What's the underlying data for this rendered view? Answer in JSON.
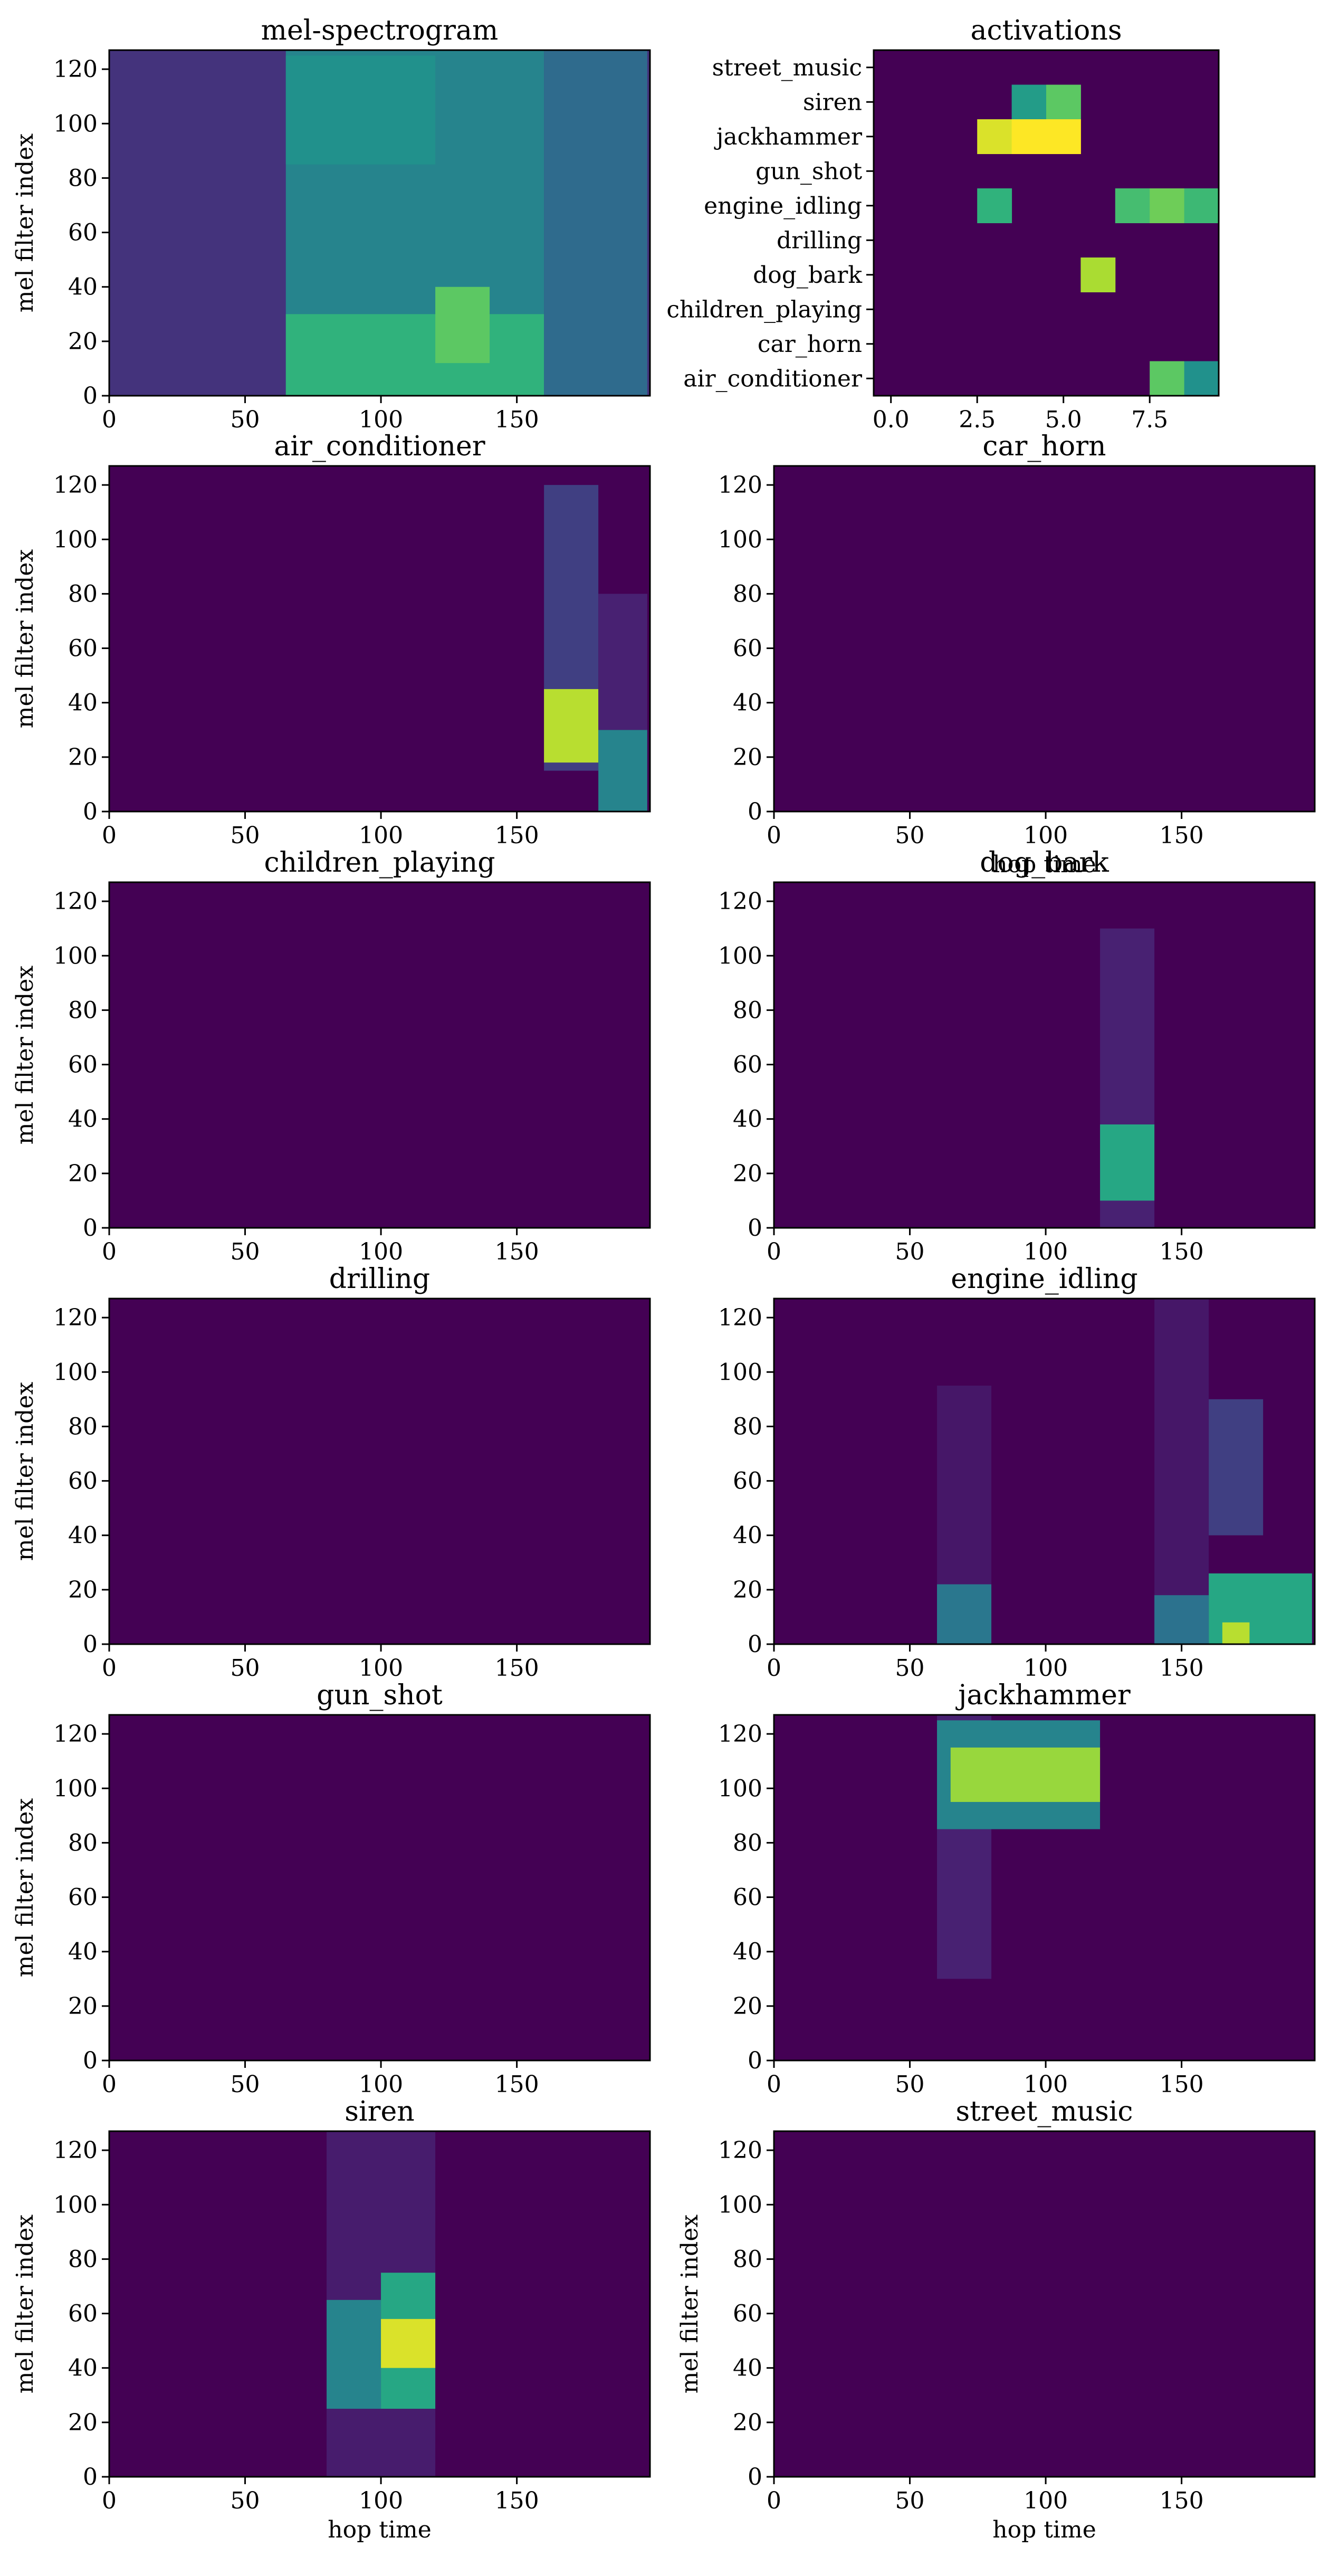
{
  "colors": {
    "background": "#440154",
    "colormap": "viridis"
  },
  "chart_data": [
    {
      "type": "heatmap",
      "title": "mel-spectrogram",
      "ylabel": "mel filter index",
      "xlabel": "",
      "xlim": [
        0,
        199
      ],
      "ylim": [
        0,
        127
      ],
      "x_ticks": [
        0,
        50,
        100,
        150
      ],
      "y_ticks": [
        0,
        20,
        40,
        60,
        80,
        100,
        120
      ],
      "base_level": 0.17,
      "events": [
        {
          "x": [
            65,
            160
          ],
          "y": [
            0,
            127
          ],
          "level": 0.45
        },
        {
          "x": [
            65,
            160
          ],
          "y": [
            0,
            30
          ],
          "level": 0.65
        },
        {
          "x": [
            160,
            198
          ],
          "y": [
            0,
            127
          ],
          "level": 0.35
        },
        {
          "x": [
            120,
            140
          ],
          "y": [
            12,
            40
          ],
          "level": 0.75
        },
        {
          "x": [
            65,
            120
          ],
          "y": [
            85,
            125
          ],
          "level": 0.5
        }
      ]
    },
    {
      "type": "heatmap",
      "title": "activations",
      "categories": [
        "street_music",
        "siren",
        "jackhammer",
        "gun_shot",
        "engine_idling",
        "drilling",
        "dog_bark",
        "children_playing",
        "car_horn",
        "air_conditioner"
      ],
      "x": [
        0,
        1,
        2,
        3,
        4,
        5,
        6,
        7,
        8,
        9
      ],
      "x_ticks": [
        "0.0",
        "2.5",
        "5.0",
        "7.5"
      ],
      "cells": [
        {
          "category": "siren",
          "x": 4,
          "level": 0.55
        },
        {
          "category": "siren",
          "x": 5,
          "level": 0.75
        },
        {
          "category": "jackhammer",
          "x": 3,
          "level": 0.95
        },
        {
          "category": "jackhammer",
          "x": 4,
          "level": 1.0
        },
        {
          "category": "jackhammer",
          "x": 5,
          "level": 1.0
        },
        {
          "category": "engine_idling",
          "x": 3,
          "level": 0.65
        },
        {
          "category": "engine_idling",
          "x": 7,
          "level": 0.7
        },
        {
          "category": "engine_idling",
          "x": 8,
          "level": 0.78
        },
        {
          "category": "engine_idling",
          "x": 9,
          "level": 0.68
        },
        {
          "category": "dog_bark",
          "x": 6,
          "level": 0.88
        },
        {
          "category": "air_conditioner",
          "x": 8,
          "level": 0.75
        },
        {
          "category": "air_conditioner",
          "x": 9,
          "level": 0.5
        }
      ]
    },
    {
      "type": "heatmap",
      "title": "air_conditioner",
      "ylabel": "mel filter index",
      "xlabel": "",
      "xlim": [
        0,
        199
      ],
      "ylim": [
        0,
        127
      ],
      "x_ticks": [
        0,
        50,
        100,
        150
      ],
      "y_ticks": [
        0,
        20,
        40,
        60,
        80,
        100,
        120
      ],
      "base_level": 0,
      "events": [
        {
          "x": [
            160,
            180
          ],
          "y": [
            15,
            120
          ],
          "level": 0.2
        },
        {
          "x": [
            160,
            180
          ],
          "y": [
            18,
            45
          ],
          "level": 0.9
        },
        {
          "x": [
            180,
            198
          ],
          "y": [
            0,
            30
          ],
          "level": 0.45
        },
        {
          "x": [
            180,
            198
          ],
          "y": [
            30,
            80
          ],
          "level": 0.12
        }
      ]
    },
    {
      "type": "heatmap",
      "title": "car_horn",
      "ylabel": "",
      "xlabel": "hop time",
      "xlim": [
        0,
        199
      ],
      "ylim": [
        0,
        127
      ],
      "x_ticks": [
        0,
        50,
        100,
        150
      ],
      "y_ticks": [
        0,
        20,
        40,
        60,
        80,
        100,
        120
      ],
      "base_level": 0,
      "events": []
    },
    {
      "type": "heatmap",
      "title": "children_playing",
      "ylabel": "mel filter index",
      "xlabel": "",
      "xlim": [
        0,
        199
      ],
      "ylim": [
        0,
        127
      ],
      "x_ticks": [
        0,
        50,
        100,
        150
      ],
      "y_ticks": [
        0,
        20,
        40,
        60,
        80,
        100,
        120
      ],
      "base_level": 0,
      "events": []
    },
    {
      "type": "heatmap",
      "title": "dog_bark",
      "ylabel": "",
      "xlabel": "",
      "xlim": [
        0,
        199
      ],
      "ylim": [
        0,
        127
      ],
      "x_ticks": [
        0,
        50,
        100,
        150
      ],
      "y_ticks": [
        0,
        20,
        40,
        60,
        80,
        100,
        120
      ],
      "base_level": 0,
      "events": [
        {
          "x": [
            120,
            140
          ],
          "y": [
            0,
            110
          ],
          "level": 0.12
        },
        {
          "x": [
            120,
            140
          ],
          "y": [
            10,
            38
          ],
          "level": 0.6
        }
      ]
    },
    {
      "type": "heatmap",
      "title": "drilling",
      "ylabel": "mel filter index",
      "xlabel": "",
      "xlim": [
        0,
        199
      ],
      "ylim": [
        0,
        127
      ],
      "x_ticks": [
        0,
        50,
        100,
        150
      ],
      "y_ticks": [
        0,
        20,
        40,
        60,
        80,
        100,
        120
      ],
      "base_level": 0,
      "events": []
    },
    {
      "type": "heatmap",
      "title": "engine_idling",
      "ylabel": "",
      "xlabel": "",
      "xlim": [
        0,
        199
      ],
      "ylim": [
        0,
        127
      ],
      "x_ticks": [
        0,
        50,
        100,
        150
      ],
      "y_ticks": [
        0,
        20,
        40,
        60,
        80,
        100,
        120
      ],
      "base_level": 0,
      "events": [
        {
          "x": [
            60,
            80
          ],
          "y": [
            0,
            95
          ],
          "level": 0.08
        },
        {
          "x": [
            60,
            80
          ],
          "y": [
            0,
            22
          ],
          "level": 0.4
        },
        {
          "x": [
            140,
            160
          ],
          "y": [
            0,
            127
          ],
          "level": 0.08
        },
        {
          "x": [
            140,
            160
          ],
          "y": [
            0,
            18
          ],
          "level": 0.38
        },
        {
          "x": [
            160,
            180
          ],
          "y": [
            40,
            90
          ],
          "level": 0.2
        },
        {
          "x": [
            160,
            198
          ],
          "y": [
            0,
            26
          ],
          "level": 0.6
        },
        {
          "x": [
            165,
            175
          ],
          "y": [
            0,
            8
          ],
          "level": 0.9
        }
      ]
    },
    {
      "type": "heatmap",
      "title": "gun_shot",
      "ylabel": "mel filter index",
      "xlabel": "",
      "xlim": [
        0,
        199
      ],
      "ylim": [
        0,
        127
      ],
      "x_ticks": [
        0,
        50,
        100,
        150
      ],
      "y_ticks": [
        0,
        20,
        40,
        60,
        80,
        100,
        120
      ],
      "base_level": 0,
      "events": []
    },
    {
      "type": "heatmap",
      "title": "jackhammer",
      "ylabel": "",
      "xlabel": "",
      "xlim": [
        0,
        199
      ],
      "ylim": [
        0,
        127
      ],
      "x_ticks": [
        0,
        50,
        100,
        150
      ],
      "y_ticks": [
        0,
        20,
        40,
        60,
        80,
        100,
        120
      ],
      "base_level": 0,
      "events": [
        {
          "x": [
            60,
            80
          ],
          "y": [
            30,
            127
          ],
          "level": 0.12
        },
        {
          "x": [
            60,
            120
          ],
          "y": [
            85,
            125
          ],
          "level": 0.45
        },
        {
          "x": [
            65,
            120
          ],
          "y": [
            95,
            115
          ],
          "level": 0.85
        }
      ]
    },
    {
      "type": "heatmap",
      "title": "siren",
      "ylabel": "mel filter index",
      "xlabel": "hop time",
      "xlim": [
        0,
        199
      ],
      "ylim": [
        0,
        127
      ],
      "x_ticks": [
        0,
        50,
        100,
        150
      ],
      "y_ticks": [
        0,
        20,
        40,
        60,
        80,
        100,
        120
      ],
      "base_level": 0,
      "events": [
        {
          "x": [
            80,
            120
          ],
          "y": [
            0,
            127
          ],
          "level": 0.1
        },
        {
          "x": [
            80,
            100
          ],
          "y": [
            25,
            65
          ],
          "level": 0.45
        },
        {
          "x": [
            100,
            120
          ],
          "y": [
            25,
            75
          ],
          "level": 0.6
        },
        {
          "x": [
            100,
            120
          ],
          "y": [
            40,
            58
          ],
          "level": 0.95
        }
      ]
    },
    {
      "type": "heatmap",
      "title": "street_music",
      "ylabel": "mel filter index",
      "xlabel": "hop time",
      "xlim": [
        0,
        199
      ],
      "ylim": [
        0,
        127
      ],
      "x_ticks": [
        0,
        50,
        100,
        150
      ],
      "y_ticks": [
        0,
        20,
        40,
        60,
        80,
        100,
        120
      ],
      "base_level": 0,
      "events": []
    }
  ]
}
